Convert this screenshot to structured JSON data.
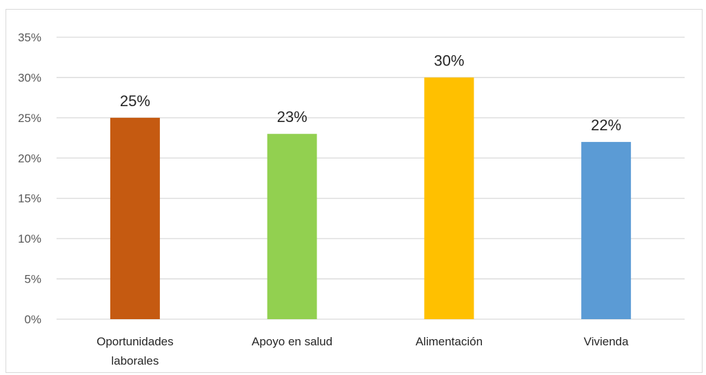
{
  "chart_data": {
    "type": "bar",
    "categories": [
      "Oportunidades laborales",
      "Apoyo en salud",
      "Alimentación",
      "Vivienda"
    ],
    "category_lines": [
      [
        "Oportunidades",
        "laborales"
      ],
      [
        "Apoyo en salud"
      ],
      [
        "Alimentación"
      ],
      [
        "Vivienda"
      ]
    ],
    "values": [
      25,
      23,
      30,
      22
    ],
    "value_labels": [
      "25%",
      "23%",
      "30%",
      "22%"
    ],
    "colors": [
      "#c55a11",
      "#92d050",
      "#ffc000",
      "#5b9bd5"
    ],
    "ylim": [
      0,
      35
    ],
    "yticks": [
      0,
      5,
      10,
      15,
      20,
      25,
      30,
      35
    ],
    "ytick_labels": [
      "0%",
      "5%",
      "10%",
      "15%",
      "20%",
      "25%",
      "30%",
      "35%"
    ],
    "grid": true,
    "gridline_color": "#d9d9d9"
  }
}
